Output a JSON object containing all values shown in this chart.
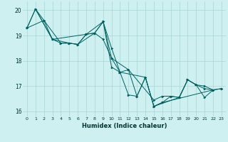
{
  "bg_color": "#cff0f0",
  "grid_color": "#aad4d4",
  "line_color": "#006060",
  "marker_color": "#006060",
  "xlabel": "Humidex (Indice chaleur)",
  "xlim": [
    -0.5,
    23.5
  ],
  "ylim": [
    15.8,
    20.35
  ],
  "yticks": [
    16,
    17,
    18,
    19,
    20
  ],
  "xticks": [
    0,
    1,
    2,
    3,
    4,
    5,
    6,
    7,
    8,
    9,
    10,
    11,
    12,
    13,
    14,
    15,
    16,
    17,
    18,
    19,
    20,
    21,
    22,
    23
  ],
  "series": [
    [
      [
        0,
        19.3
      ],
      [
        1,
        20.05
      ],
      [
        2,
        19.6
      ],
      [
        3,
        18.85
      ],
      [
        4,
        18.7
      ],
      [
        5,
        18.7
      ],
      [
        6,
        18.65
      ],
      [
        7,
        19.05
      ],
      [
        8,
        19.1
      ],
      [
        9,
        19.55
      ],
      [
        10,
        18.1
      ],
      [
        11,
        17.55
      ],
      [
        12,
        17.65
      ],
      [
        13,
        16.6
      ],
      [
        14,
        17.35
      ],
      [
        15,
        16.2
      ],
      [
        16,
        16.35
      ],
      [
        17,
        16.6
      ],
      [
        18,
        16.55
      ],
      [
        19,
        17.25
      ],
      [
        20,
        17.05
      ],
      [
        21,
        16.55
      ],
      [
        22,
        16.85
      ]
    ],
    [
      [
        0,
        19.3
      ],
      [
        1,
        20.05
      ],
      [
        3,
        18.85
      ],
      [
        7,
        19.05
      ],
      [
        9,
        19.55
      ],
      [
        10,
        17.75
      ],
      [
        11,
        17.55
      ],
      [
        12,
        16.65
      ],
      [
        13,
        16.6
      ],
      [
        14,
        17.35
      ],
      [
        15,
        16.2
      ],
      [
        16,
        16.35
      ],
      [
        22,
        16.85
      ]
    ],
    [
      [
        0,
        19.3
      ],
      [
        2,
        19.6
      ],
      [
        4,
        18.7
      ],
      [
        5,
        18.7
      ],
      [
        6,
        18.65
      ],
      [
        8,
        19.1
      ],
      [
        9,
        18.85
      ],
      [
        10,
        18.1
      ],
      [
        12,
        17.65
      ],
      [
        15,
        16.45
      ],
      [
        16,
        16.6
      ],
      [
        17,
        16.6
      ],
      [
        18,
        16.55
      ],
      [
        19,
        17.25
      ],
      [
        20,
        17.05
      ],
      [
        21,
        16.9
      ],
      [
        22,
        16.85
      ],
      [
        23,
        16.9
      ]
    ],
    [
      [
        1,
        20.05
      ],
      [
        3,
        18.85
      ],
      [
        5,
        18.7
      ],
      [
        6,
        18.65
      ],
      [
        7,
        19.05
      ],
      [
        8,
        19.1
      ],
      [
        9,
        19.55
      ],
      [
        10,
        18.5
      ],
      [
        11,
        17.55
      ],
      [
        14,
        17.35
      ],
      [
        15,
        16.2
      ],
      [
        18,
        16.55
      ],
      [
        19,
        17.25
      ],
      [
        20,
        17.05
      ],
      [
        21,
        17.0
      ],
      [
        22,
        16.85
      ],
      [
        23,
        16.9
      ]
    ]
  ]
}
